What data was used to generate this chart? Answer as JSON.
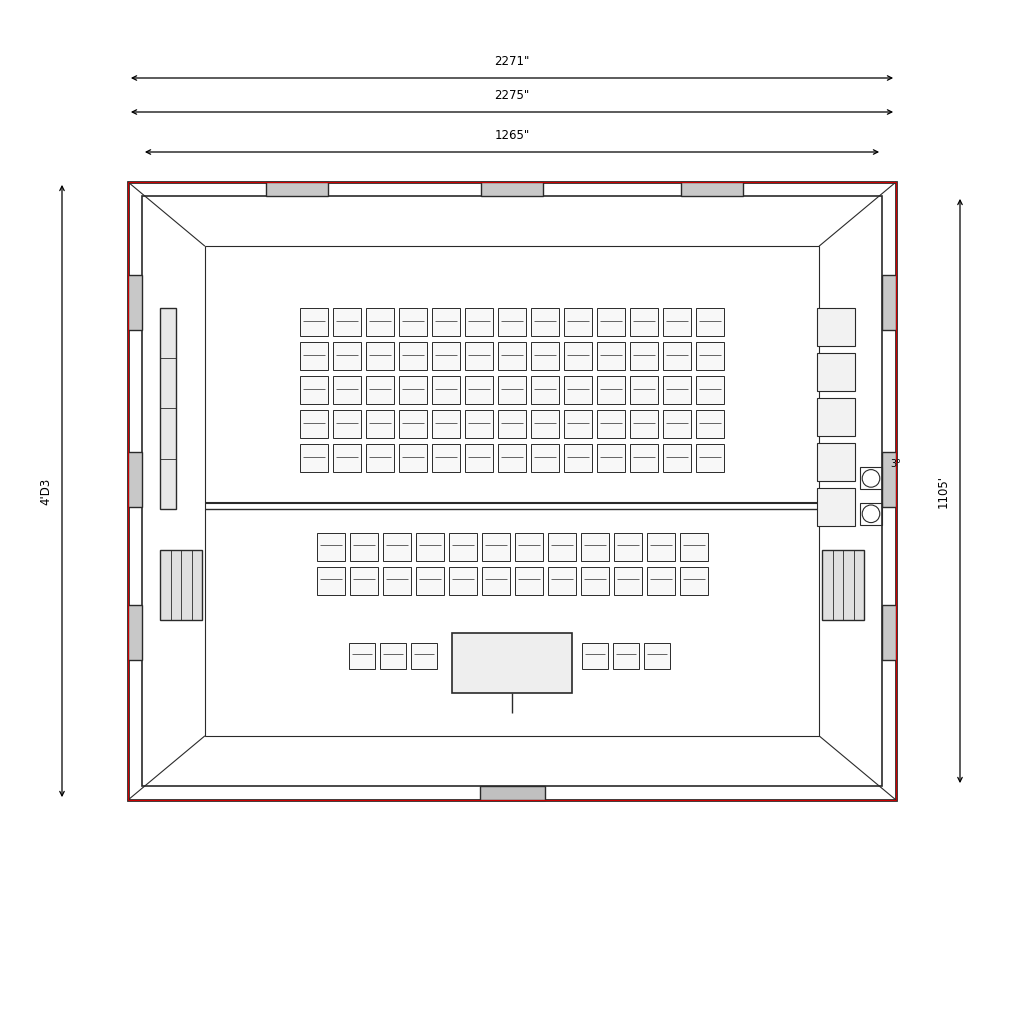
{
  "bg_color": "#ffffff",
  "line_color": "#2a2a2a",
  "dim_color": "#cc0000",
  "fig_width": 10.24,
  "fig_height": 10.24,
  "dim_label_outer_w": "2271\"",
  "dim_label_mid_w": "2275\"",
  "dim_label_inner_w": "1265\"",
  "dim_label_h": "4'D3",
  "dim_label_right_h": "1105'"
}
